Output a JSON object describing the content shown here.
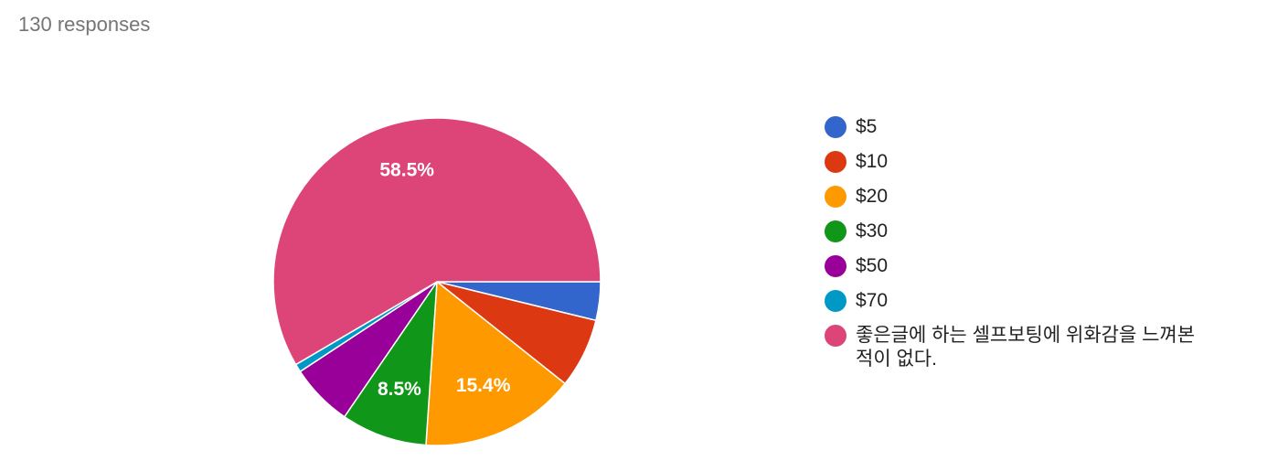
{
  "chart_data": {
    "type": "pie",
    "subtitle": "130 responses",
    "categories": [
      "$5",
      "$10",
      "$20",
      "$30",
      "$50",
      "$70",
      "좋은글에 하는 셀프보팅에 위화감을 느껴본 적이 없다."
    ],
    "values": [
      3.8,
      6.9,
      15.4,
      8.5,
      6.2,
      0.8,
      58.5
    ],
    "value_labels": [
      null,
      null,
      "15.4%",
      "8.5%",
      null,
      null,
      "58.5%"
    ],
    "colors": [
      "#3366cc",
      "#dc3912",
      "#ff9900",
      "#109618",
      "#990099",
      "#0099c6",
      "#dd4477"
    ]
  }
}
